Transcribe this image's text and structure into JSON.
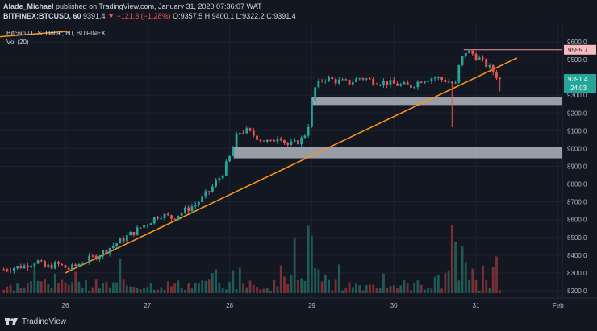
{
  "header": {
    "author": "Alade_Michael",
    "published": "published on TradingView.com, January 31, 2020 07:36:07 WAT",
    "symbol": "BITFINEX:BTCUSD, 60",
    "last": "9391.4",
    "change": "▼ −121.3 (−1.28%)",
    "ohlc_o": "O:9357.5",
    "ohlc_h": "H:9400.1",
    "ohlc_l": "L:9322.2",
    "ohlc_c": "C:9391.4"
  },
  "legend": {
    "title": "Bitcoin / U.S. Dollar, 60, BITFINEX",
    "volume": "Vol (20)"
  },
  "footer": {
    "brand": "TradingView"
  },
  "colors": {
    "background": "#131722",
    "up": "#26a69a",
    "down": "#ef5350",
    "trendline": "#f7931a",
    "zone": "#b2b5be",
    "hline": "#ef9a9a",
    "price_label_bg": "#26a69a",
    "hline_label_bg": "#f8bbbb"
  },
  "chart_data": {
    "type": "candlestick",
    "title": "Bitcoin / U.S. Dollar, 60, BITFINEX",
    "x_ticks": [
      "26",
      "27",
      "28",
      "29",
      "30",
      "31",
      "Feb"
    ],
    "y_ticks": [
      8200,
      8300,
      8400,
      8500,
      8600,
      8700,
      8800,
      8900,
      9000,
      9100,
      9200,
      9300,
      9400,
      9500,
      9600
    ],
    "y_range": [
      8175,
      9650
    ],
    "last_price": 9391.4,
    "last_price_label": "9391.4",
    "countdown_label": "24:03",
    "horizontal_line": {
      "value": 9555.7,
      "label": "9555.7",
      "from_day": 30.85
    },
    "support_zones": [
      {
        "from_day": 29.0,
        "to_day": 32.1,
        "low": 9245,
        "high": 9290
      },
      {
        "from_day": 28.05,
        "to_day": 32.1,
        "low": 8945,
        "high": 9010
      }
    ],
    "trendlines": [
      {
        "from": [
          26.0,
          8300
        ],
        "to": [
          31.5,
          9510
        ]
      },
      {
        "from": [
          25.1,
          9625
        ],
        "to": [
          26.05,
          9660
        ]
      }
    ],
    "x_domain": [
      25.25,
      32.0
    ],
    "path": [
      [
        25.25,
        8320
      ],
      [
        25.5,
        8340
      ],
      [
        25.65,
        8370
      ],
      [
        25.75,
        8330
      ],
      [
        25.9,
        8350
      ],
      [
        26.05,
        8320
      ],
      [
        26.2,
        8360
      ],
      [
        26.4,
        8400
      ],
      [
        26.6,
        8460
      ],
      [
        26.8,
        8520
      ],
      [
        27.0,
        8580
      ],
      [
        27.15,
        8630
      ],
      [
        27.3,
        8610
      ],
      [
        27.45,
        8650
      ],
      [
        27.6,
        8690
      ],
      [
        27.75,
        8760
      ],
      [
        27.9,
        8850
      ],
      [
        28.0,
        8950
      ],
      [
        28.1,
        9090
      ],
      [
        28.2,
        9100
      ],
      [
        28.35,
        9060
      ],
      [
        28.5,
        9030
      ],
      [
        28.6,
        9080
      ],
      [
        28.7,
        9020
      ],
      [
        28.8,
        9030
      ],
      [
        28.9,
        9060
      ],
      [
        28.97,
        9150
      ],
      [
        29.02,
        9330
      ],
      [
        29.15,
        9400
      ],
      [
        29.3,
        9380
      ],
      [
        29.45,
        9370
      ],
      [
        29.6,
        9400
      ],
      [
        29.75,
        9380
      ],
      [
        29.9,
        9370
      ],
      [
        30.05,
        9360
      ],
      [
        30.2,
        9350
      ],
      [
        30.35,
        9390
      ],
      [
        30.5,
        9400
      ],
      [
        30.65,
        9380
      ],
      [
        30.75,
        9360
      ],
      [
        30.8,
        9480
      ],
      [
        30.88,
        9550
      ],
      [
        30.97,
        9530
      ],
      [
        31.05,
        9500
      ],
      [
        31.15,
        9460
      ],
      [
        31.25,
        9410
      ],
      [
        31.3,
        9391
      ]
    ],
    "volume_peaks": [
      [
        25.95,
        8310
      ],
      [
        27.8,
        8340
      ],
      [
        28.8,
        8500
      ],
      [
        28.95,
        8555
      ],
      [
        29.0,
        8510
      ],
      [
        30.7,
        8560
      ],
      [
        30.75,
        8480
      ],
      [
        30.85,
        8390
      ]
    ]
  }
}
